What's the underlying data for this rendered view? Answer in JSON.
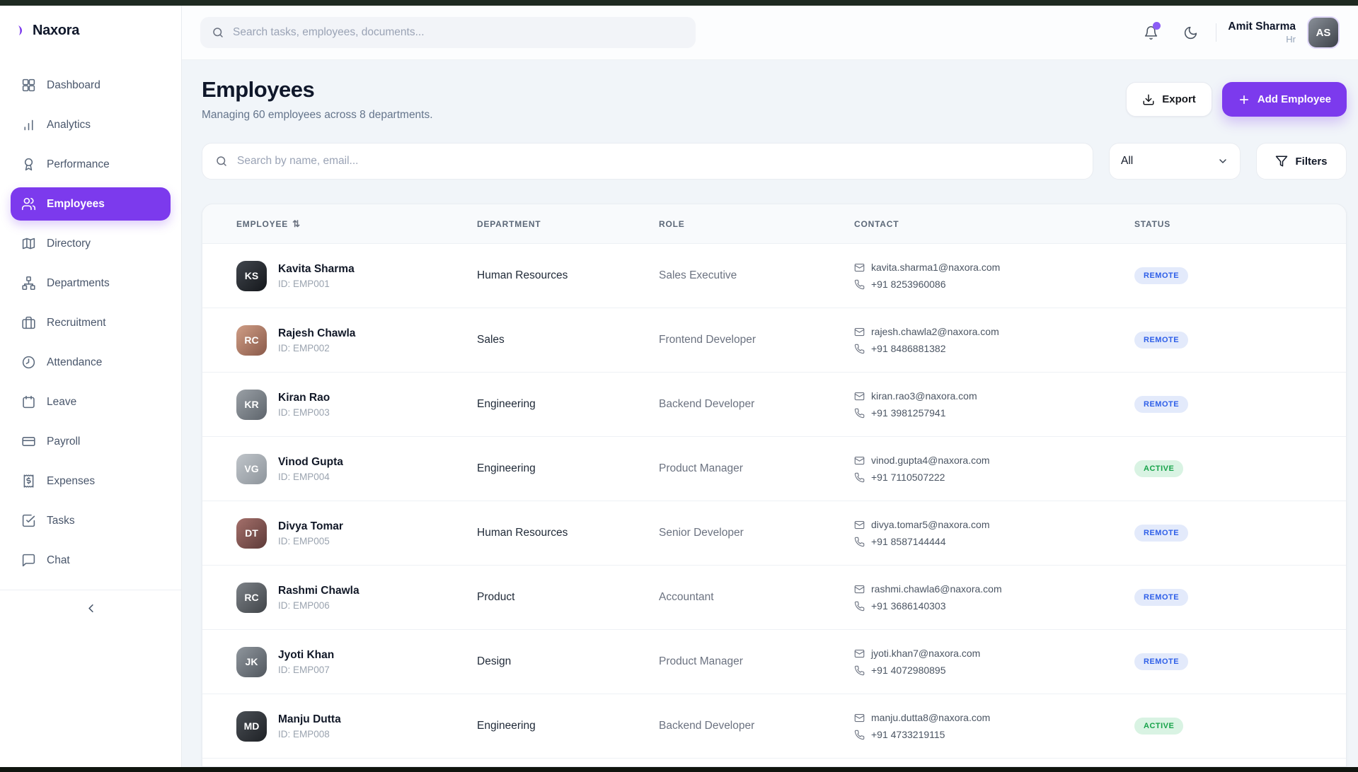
{
  "colors": {
    "accent": "#7c3aed",
    "accent_soft": "#8b5cf6",
    "remote_bg": "#e3eafb",
    "remote_text": "#2e5fe8",
    "active_bg": "#d9f3e3",
    "active_text": "#17a34a"
  },
  "brand": {
    "name": "Naxora"
  },
  "sidebar": {
    "items": [
      {
        "label": "Dashboard",
        "icon": "dashboard",
        "active": false
      },
      {
        "label": "Analytics",
        "icon": "analytics",
        "active": false
      },
      {
        "label": "Performance",
        "icon": "performance",
        "active": false
      },
      {
        "label": "Employees",
        "icon": "employees",
        "active": true
      },
      {
        "label": "Directory",
        "icon": "directory",
        "active": false
      },
      {
        "label": "Departments",
        "icon": "departments",
        "active": false
      },
      {
        "label": "Recruitment",
        "icon": "recruitment",
        "active": false
      },
      {
        "label": "Attendance",
        "icon": "attendance",
        "active": false
      },
      {
        "label": "Leave",
        "icon": "leave",
        "active": false
      },
      {
        "label": "Payroll",
        "icon": "payroll",
        "active": false
      },
      {
        "label": "Expenses",
        "icon": "expenses",
        "active": false
      },
      {
        "label": "Tasks",
        "icon": "tasks",
        "active": false
      },
      {
        "label": "Chat",
        "icon": "chat",
        "active": false
      }
    ]
  },
  "topbar": {
    "search_placeholder": "Search tasks, employees, documents...",
    "user": {
      "name": "Amit Sharma",
      "role": "Hr"
    }
  },
  "page": {
    "title": "Employees",
    "subtitle": "Managing 60 employees across 8 departments.",
    "export_label": "Export",
    "add_employee_label": "Add Employee",
    "filter_search_placeholder": "Search by name, email...",
    "department_filter_value": "All",
    "filters_label": "Filters"
  },
  "table": {
    "columns": [
      "EMPLOYEE",
      "DEPARTMENT",
      "ROLE",
      "CONTACT",
      "STATUS"
    ],
    "rows": [
      {
        "name": "Kavita Sharma",
        "id": "ID: EMP001",
        "department": "Human Resources",
        "role": "Sales Executive",
        "email": "kavita.sharma1@naxora.com",
        "phone": "+91 8253960086",
        "status": "REMOTE"
      },
      {
        "name": "Rajesh Chawla",
        "id": "ID: EMP002",
        "department": "Sales",
        "role": "Frontend Developer",
        "email": "rajesh.chawla2@naxora.com",
        "phone": "+91 8486881382",
        "status": "REMOTE"
      },
      {
        "name": "Kiran Rao",
        "id": "ID: EMP003",
        "department": "Engineering",
        "role": "Backend Developer",
        "email": "kiran.rao3@naxora.com",
        "phone": "+91 3981257941",
        "status": "REMOTE"
      },
      {
        "name": "Vinod Gupta",
        "id": "ID: EMP004",
        "department": "Engineering",
        "role": "Product Manager",
        "email": "vinod.gupta4@naxora.com",
        "phone": "+91 7110507222",
        "status": "ACTIVE"
      },
      {
        "name": "Divya Tomar",
        "id": "ID: EMP005",
        "department": "Human Resources",
        "role": "Senior Developer",
        "email": "divya.tomar5@naxora.com",
        "phone": "+91 8587144444",
        "status": "REMOTE"
      },
      {
        "name": "Rashmi Chawla",
        "id": "ID: EMP006",
        "department": "Product",
        "role": "Accountant",
        "email": "rashmi.chawla6@naxora.com",
        "phone": "+91 3686140303",
        "status": "REMOTE"
      },
      {
        "name": "Jyoti Khan",
        "id": "ID: EMP007",
        "department": "Design",
        "role": "Product Manager",
        "email": "jyoti.khan7@naxora.com",
        "phone": "+91 4072980895",
        "status": "REMOTE"
      },
      {
        "name": "Manju Dutta",
        "id": "ID: EMP008",
        "department": "Engineering",
        "role": "Backend Developer",
        "email": "manju.dutta8@naxora.com",
        "phone": "+91 4733219115",
        "status": "ACTIVE"
      }
    ]
  }
}
